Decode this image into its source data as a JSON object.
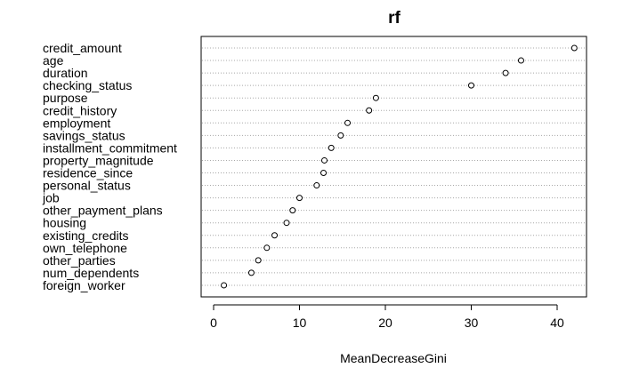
{
  "chart_data": {
    "type": "scatter",
    "title": "rf",
    "xlabel": "MeanDecreaseGini",
    "ylabel": "",
    "xlim": [
      -1,
      44
    ],
    "xticks": [
      0,
      10,
      20,
      30,
      40
    ],
    "grid": "horizontal-dotted",
    "categories": [
      "credit_amount",
      "age",
      "duration",
      "checking_status",
      "purpose",
      "credit_history",
      "employment",
      "savings_status",
      "installment_commitment",
      "property_magnitude",
      "residence_since",
      "personal_status",
      "job",
      "other_payment_plans",
      "housing",
      "existing_credits",
      "own_telephone",
      "other_parties",
      "num_dependents",
      "foreign_worker"
    ],
    "values": [
      42.0,
      35.8,
      34.0,
      30.0,
      18.9,
      18.1,
      15.6,
      14.8,
      13.7,
      12.9,
      12.8,
      12.0,
      10.0,
      9.2,
      8.5,
      7.1,
      6.2,
      5.2,
      4.4,
      1.2
    ],
    "marker": "open-circle"
  }
}
